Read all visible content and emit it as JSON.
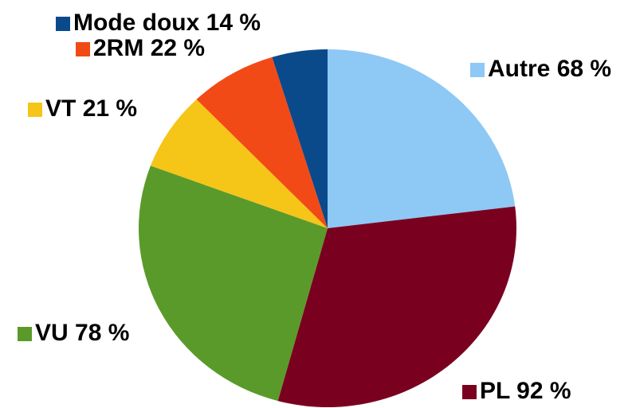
{
  "chart_data": {
    "type": "pie",
    "categories": [
      "Autre",
      "PL",
      "VU",
      "VT",
      "2RM",
      "Mode doux"
    ],
    "values": [
      68,
      92,
      78,
      21,
      22,
      14
    ],
    "value_labels": [
      "68 %",
      "92 %",
      "78 %",
      "21 %",
      "22 %",
      "14 %"
    ],
    "colors": [
      "#8ec8f5",
      "#7a0020",
      "#5a9a2a",
      "#f5c518",
      "#f24a16",
      "#0a4a8a"
    ]
  }
}
